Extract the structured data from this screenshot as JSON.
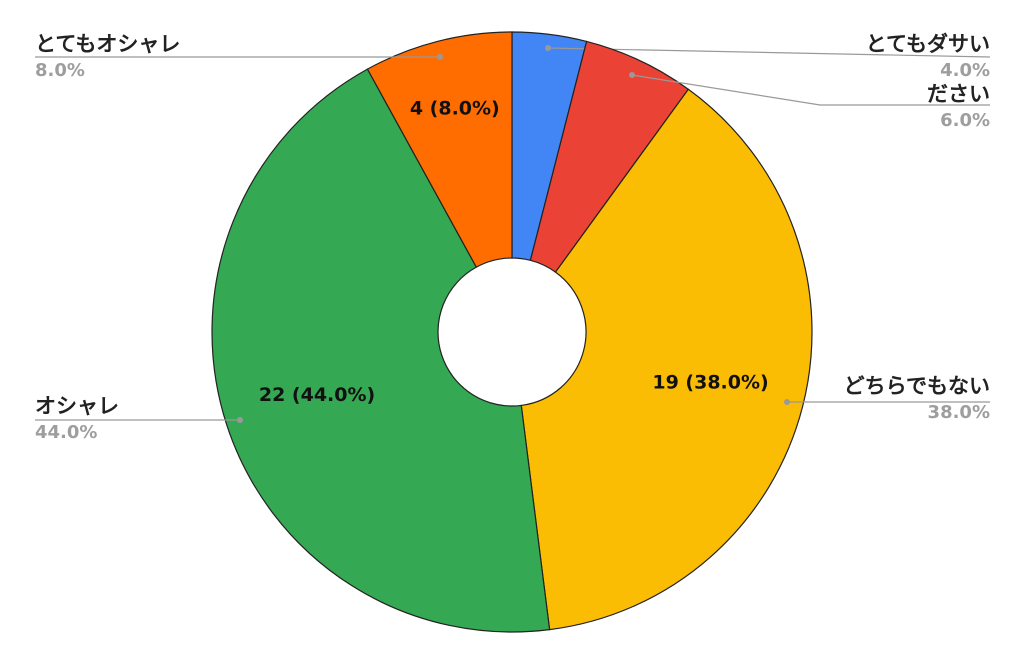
{
  "chart_data": {
    "type": "pie",
    "categories": [
      "とてもダサい",
      "ださい",
      "どちらでもない",
      "オシャレ",
      "とてもオシャレ"
    ],
    "values": [
      4,
      6,
      38,
      44,
      8
    ],
    "value_labels": [
      "4.0%",
      "6.0%",
      "38.0%",
      "44.0%",
      "8.0%"
    ],
    "inside_labels": [
      null,
      null,
      "19 (38.0%)",
      "22 (44.0%)",
      "4 (8.0%)"
    ],
    "colors": [
      "#4285f4",
      "#ea4335",
      "#fbbc04",
      "#34a853",
      "#ff6d01"
    ],
    "donut": true
  }
}
